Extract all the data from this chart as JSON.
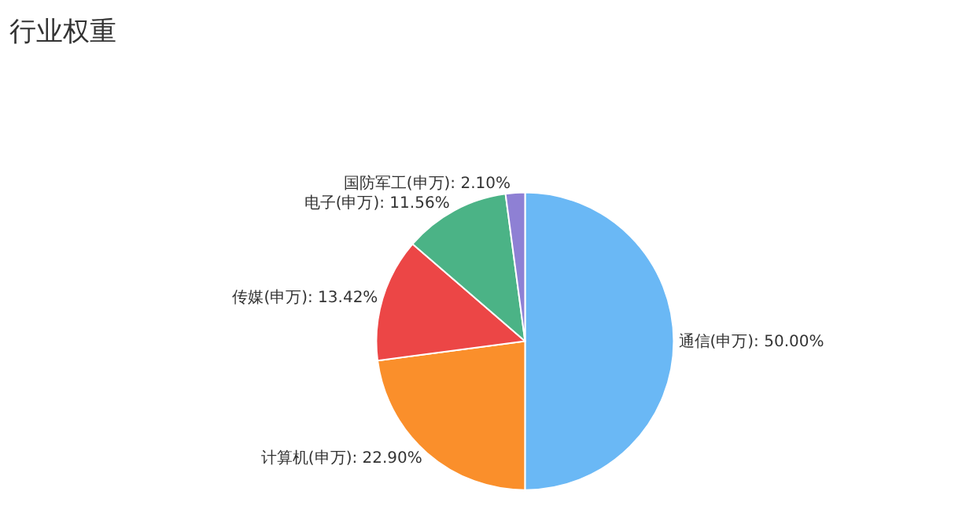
{
  "chart_data": {
    "type": "pie",
    "title": "行业权重",
    "categories": [
      "通信(申万)",
      "计算机(申万)",
      "传媒(申万)",
      "电子(申万)",
      "国防军工(申万)"
    ],
    "values": [
      50.0,
      22.9,
      13.42,
      11.56,
      2.1
    ],
    "value_labels": [
      "50.00%",
      "22.90%",
      "13.42%",
      "11.56%",
      "2.10%"
    ],
    "colors": [
      "#6ab8f5",
      "#fa8f2b",
      "#ec4646",
      "#4bb386",
      "#8e80d4"
    ],
    "legend": false
  }
}
